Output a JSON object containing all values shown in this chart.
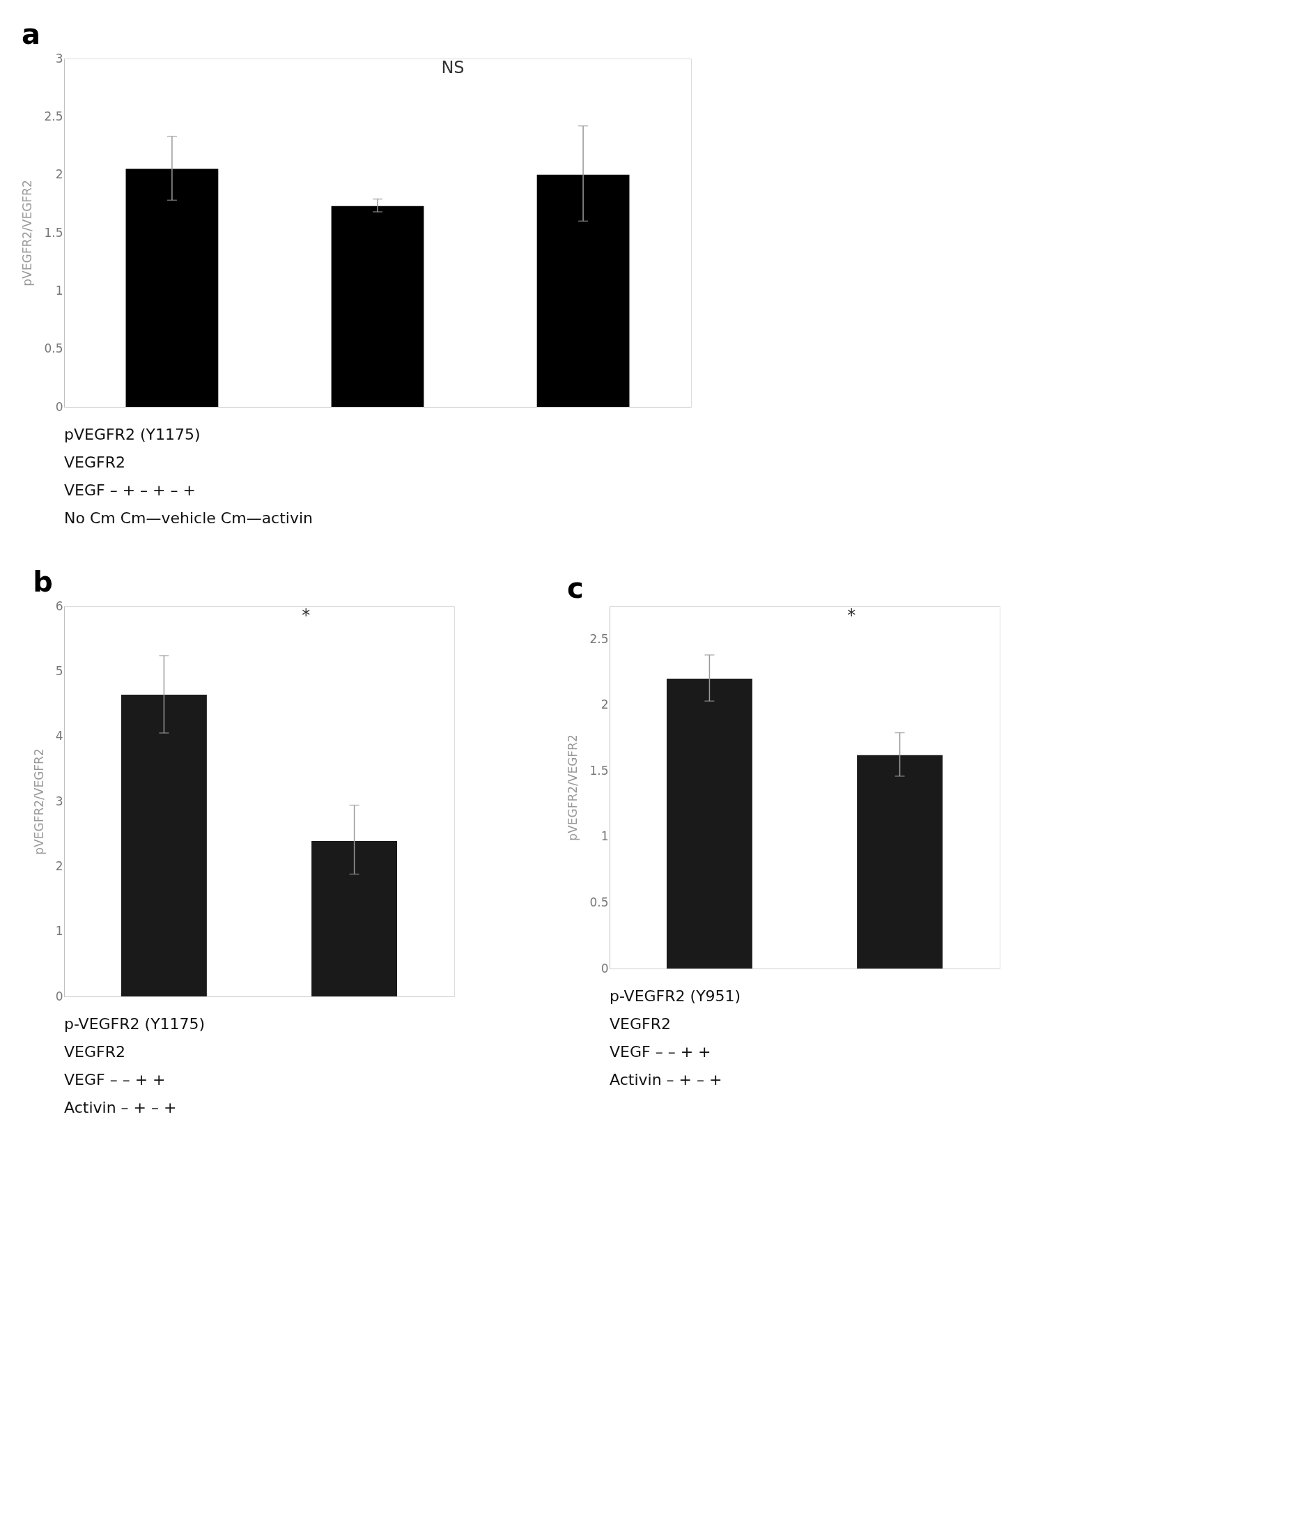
{
  "chart_data": [
    {
      "type": "bar",
      "title": "a",
      "ylabel": "pVEGFR2/VEGFR2",
      "categories": [
        null,
        null,
        null
      ],
      "tick_labels": "y",
      "values": [
        2.05,
        1.73,
        2.0
      ],
      "errors": [
        [
          1.78,
          2.33
        ],
        [
          1.68,
          1.79
        ],
        [
          1.6,
          2.42
        ]
      ],
      "color": "#000000",
      "ylim": [
        0,
        3
      ],
      "yticks": [
        0,
        0.5,
        1,
        1.5,
        2,
        2.5,
        3
      ],
      "annotations": [
        "NS",
        "pVEGFR2 (Y1175)",
        "VEGFR2",
        "VEGF   –   +   –   +   –   +",
        "No Cm      Cm—vehicle      Cm—activin"
      ]
    },
    {
      "type": "bar",
      "title": "b",
      "ylabel": "pVEGFR2/VEGFR2",
      "categories": [
        null,
        null
      ],
      "tick_labels": "y",
      "values": [
        4.64,
        2.39
      ],
      "errors": [
        [
          4.05,
          5.24
        ],
        [
          1.88,
          2.94
        ]
      ],
      "color": "#1a1a1a",
      "ylim": [
        0,
        6
      ],
      "yticks": [
        0,
        1,
        2,
        3,
        4,
        5,
        6
      ],
      "annotations": [
        "*",
        "p-VEGFR2 (Y1175)",
        "VEGFR2",
        "VEGF   –   –   +   +",
        "Activin   –   +   –   +"
      ]
    },
    {
      "type": "bar",
      "title": "c",
      "ylabel": "pVEGFR2/VEGFR2",
      "categories": [
        null,
        null
      ],
      "tick_labels": "y",
      "values": [
        2.2,
        1.62
      ],
      "errors": [
        [
          2.03,
          2.38
        ],
        [
          1.46,
          1.79
        ]
      ],
      "color": "#1a1a1a",
      "ylim": [
        0,
        2.75
      ],
      "yticks": [
        0,
        0.5,
        1,
        1.5,
        2,
        2.5
      ],
      "annotations": [
        "*",
        "p-VEGFR2 (Y951)",
        "VEGFR2",
        "VEGF   –   –   +   +",
        "Activin   –   +   –   +"
      ]
    }
  ]
}
